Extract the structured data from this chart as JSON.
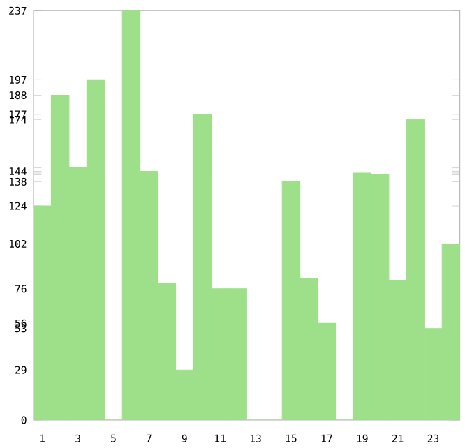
{
  "chart_data": {
    "type": "bar",
    "categories": [
      "1",
      null,
      "3",
      null,
      "5",
      null,
      "7",
      null,
      "9",
      null,
      "11",
      null,
      "13",
      null,
      "15",
      null,
      "17",
      null,
      "19",
      null,
      "21",
      null,
      "23",
      null
    ],
    "values": [
      124,
      188,
      146,
      197,
      0,
      237,
      144,
      79,
      29,
      177,
      76,
      76,
      0,
      0,
      138,
      82,
      56,
      0,
      143,
      142,
      81,
      174,
      53,
      102
    ],
    "color": "#9ee08a",
    "ylim": [
      0,
      237
    ],
    "yticks": [
      0,
      29,
      53,
      56,
      76,
      {
        "value": 79,
        "label": null
      },
      {
        "value": 81,
        "label": null
      },
      {
        "value": 82,
        "label": null
      },
      102,
      124,
      138,
      {
        "value": 142,
        "label": null
      },
      {
        "value": 143,
        "label": null
      },
      144,
      {
        "value": 146,
        "label": null
      },
      174,
      177,
      188,
      197,
      237
    ],
    "grid": false
  }
}
